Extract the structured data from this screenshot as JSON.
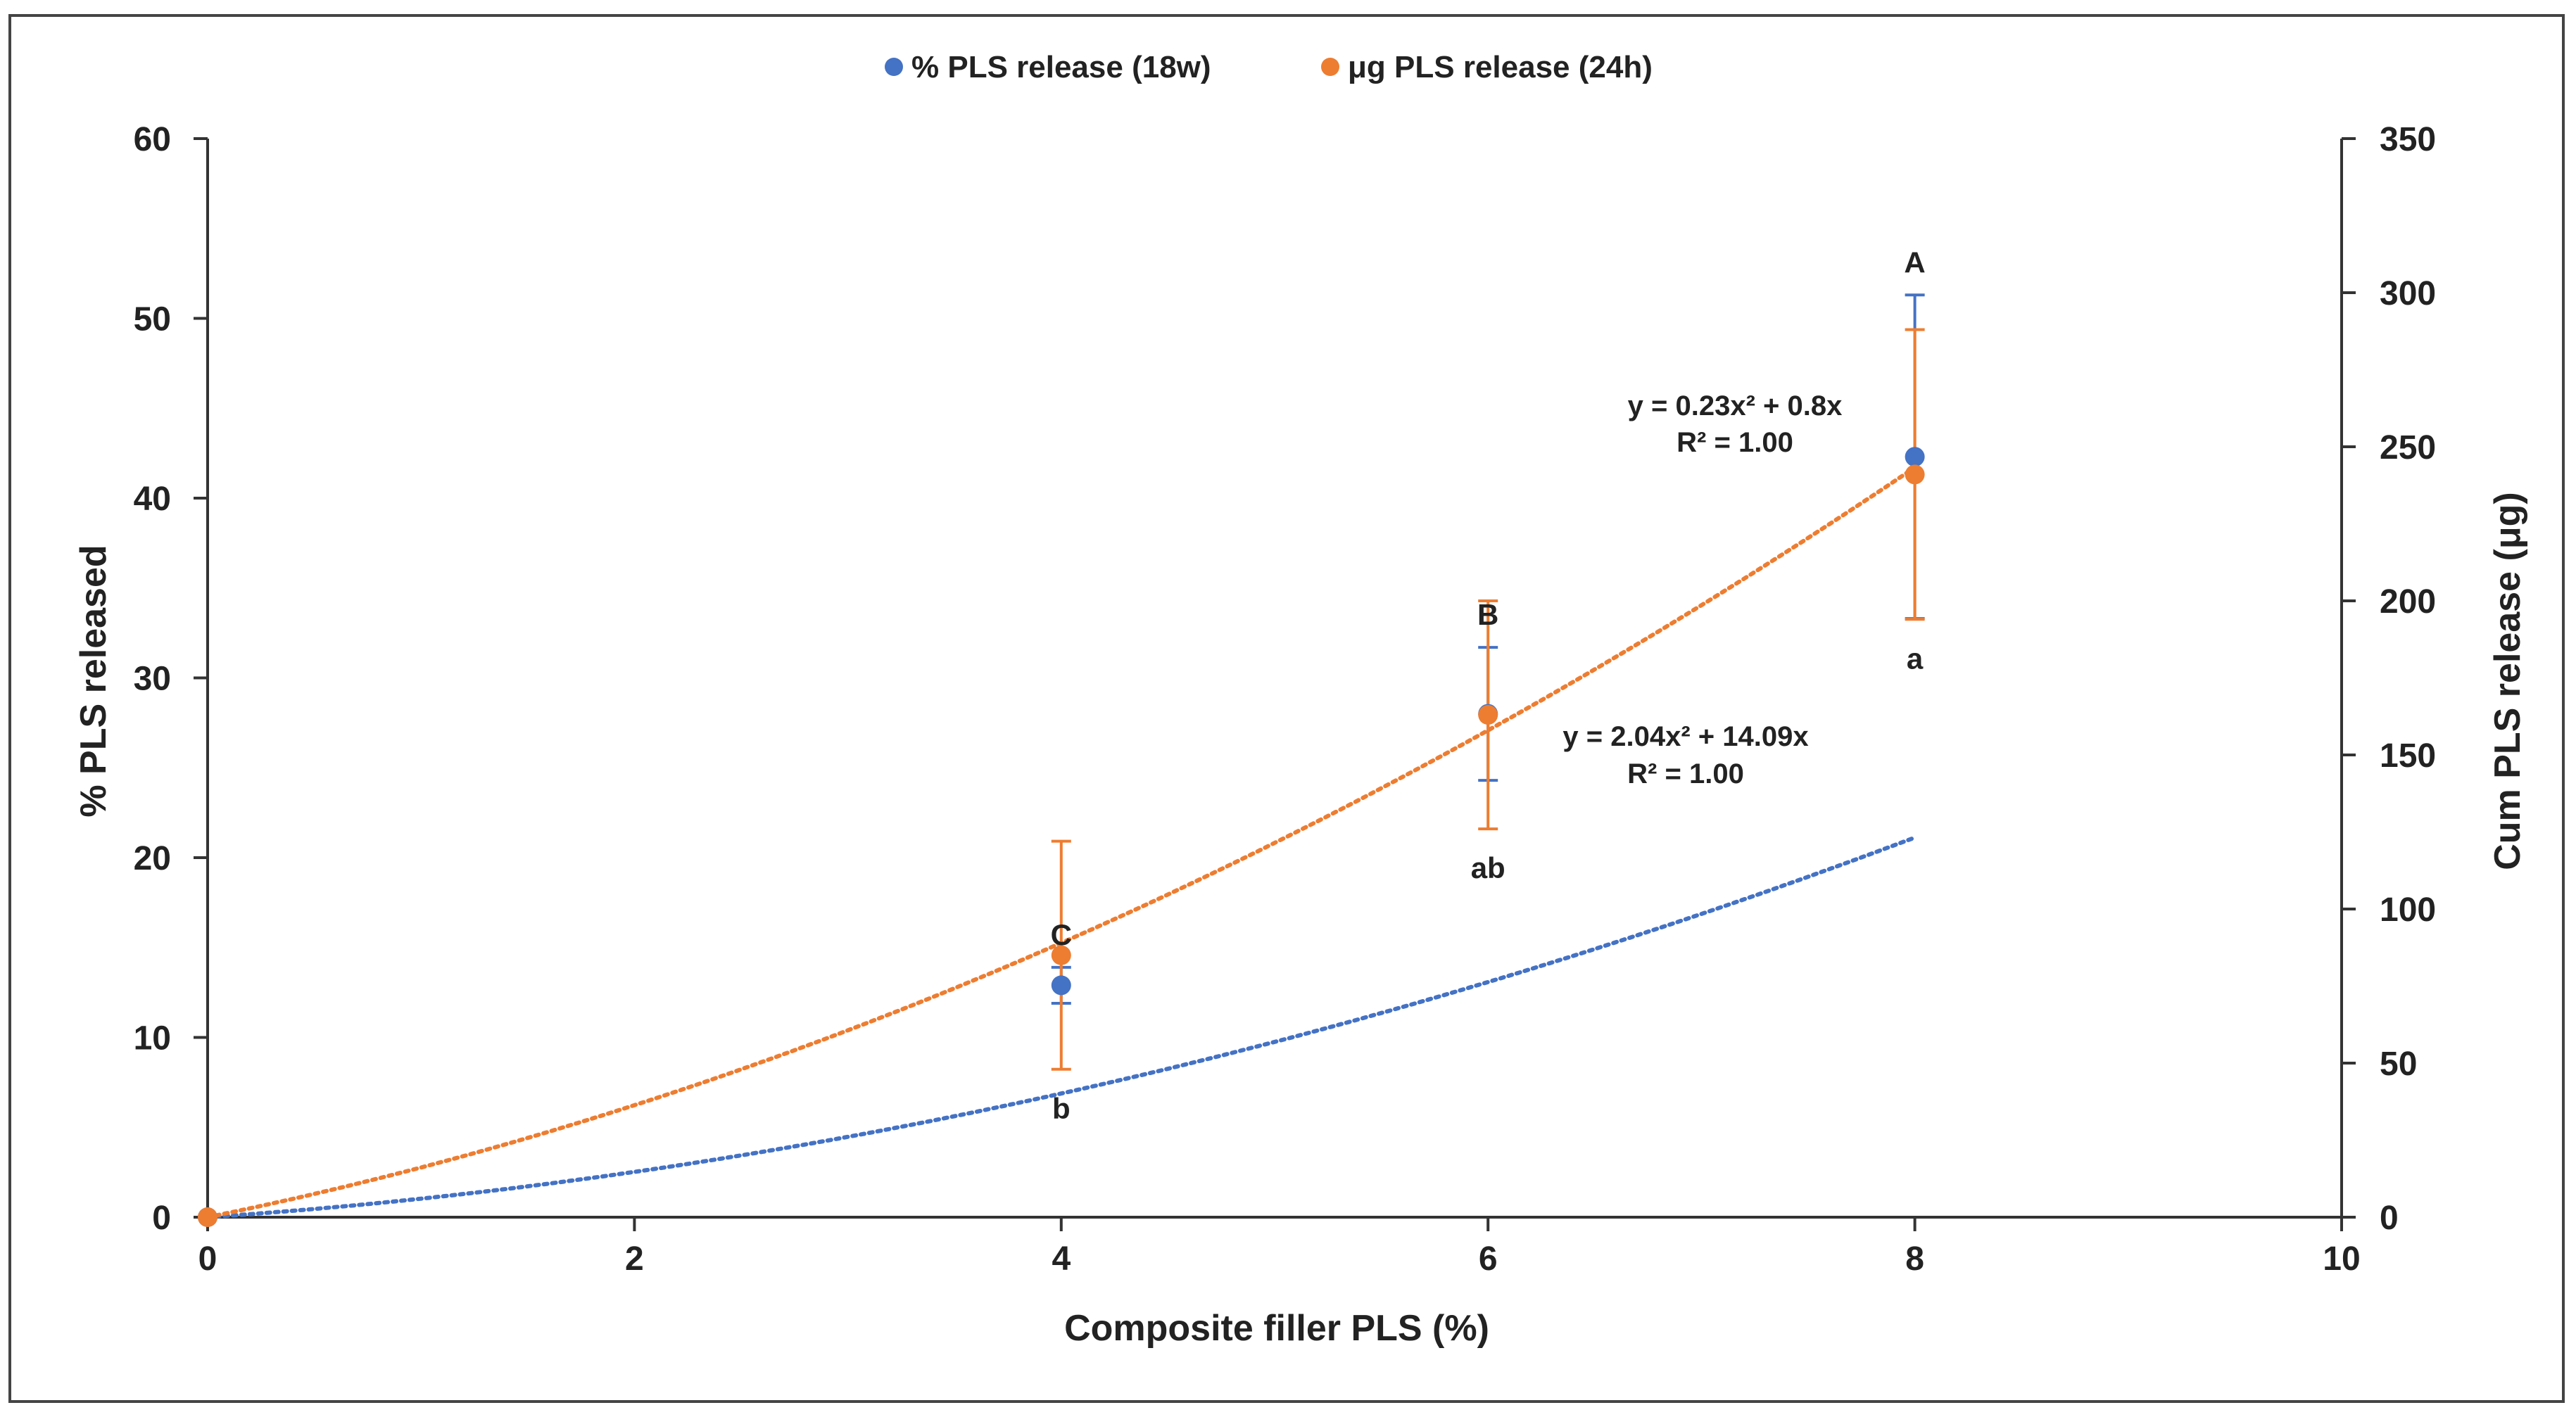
{
  "chart_data": {
    "type": "scatter",
    "title": "",
    "xlabel": "Composite filler PLS (%)",
    "ylabel": "% PLS released",
    "y2label": "Cum PLS release (μg)",
    "xlim": [
      0,
      10
    ],
    "ylim": [
      0,
      60
    ],
    "y2lim": [
      0,
      350
    ],
    "x_ticks": [
      "0",
      "2",
      "4",
      "6",
      "8",
      "10"
    ],
    "y_ticks": [
      "0",
      "10",
      "20",
      "30",
      "40",
      "50",
      "60"
    ],
    "y2_ticks": [
      "0",
      "50",
      "100",
      "150",
      "200",
      "250",
      "300",
      "350"
    ],
    "grid": false,
    "legend_position": "top-center",
    "series": [
      {
        "name": "% PLS release (18w)",
        "axis": "left",
        "color": "#4472C4",
        "x": [
          0,
          4,
          6,
          8
        ],
        "y": [
          0,
          12.9,
          28.0,
          42.3
        ],
        "err": [
          0,
          1.0,
          3.7,
          9.0
        ],
        "letters": [
          "",
          "C",
          "B",
          "A"
        ],
        "trendline": {
          "a": 0.23,
          "b": 0.8,
          "equation": "y = 0.23x² + 0.8x",
          "r2": "R² = 1.00"
        }
      },
      {
        "name": "μg PLS release (24h)",
        "axis": "right",
        "color": "#ED7D31",
        "x": [
          0,
          4,
          6,
          8
        ],
        "y": [
          0,
          85,
          163,
          241
        ],
        "err": [
          0,
          37,
          37,
          47
        ],
        "letters": [
          "",
          "b",
          "ab",
          "a"
        ],
        "trendline": {
          "a": 2.04,
          "b": 14.09,
          "equation": "y = 2.04x² + 14.09x",
          "r2": "R² = 1.00"
        }
      }
    ]
  }
}
